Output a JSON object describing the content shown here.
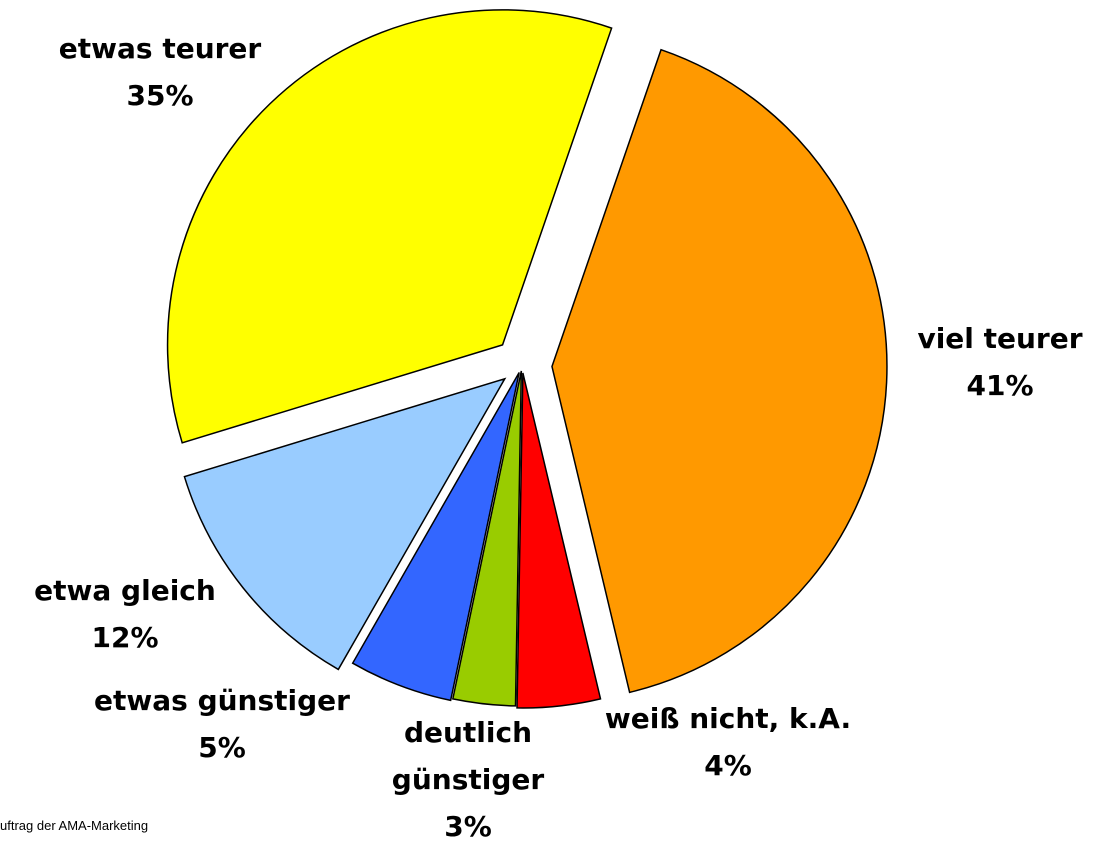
{
  "chart_data": {
    "type": "pie",
    "categories": [
      "viel teurer",
      "weiß nicht, k.A.",
      "deutlich günstiger",
      "etwas günstiger",
      "etwa gleich",
      "etwas teurer"
    ],
    "values": [
      41,
      4,
      3,
      5,
      12,
      35
    ],
    "value_labels": [
      "41%",
      "4%",
      "3%",
      "5%",
      "12%",
      "35%"
    ],
    "colors": [
      "#ff9900",
      "#ff0000",
      "#99cc00",
      "#3366ff",
      "#99ccff",
      "#ffff00"
    ],
    "footnote": "uftrag der AMA-Marketing"
  }
}
